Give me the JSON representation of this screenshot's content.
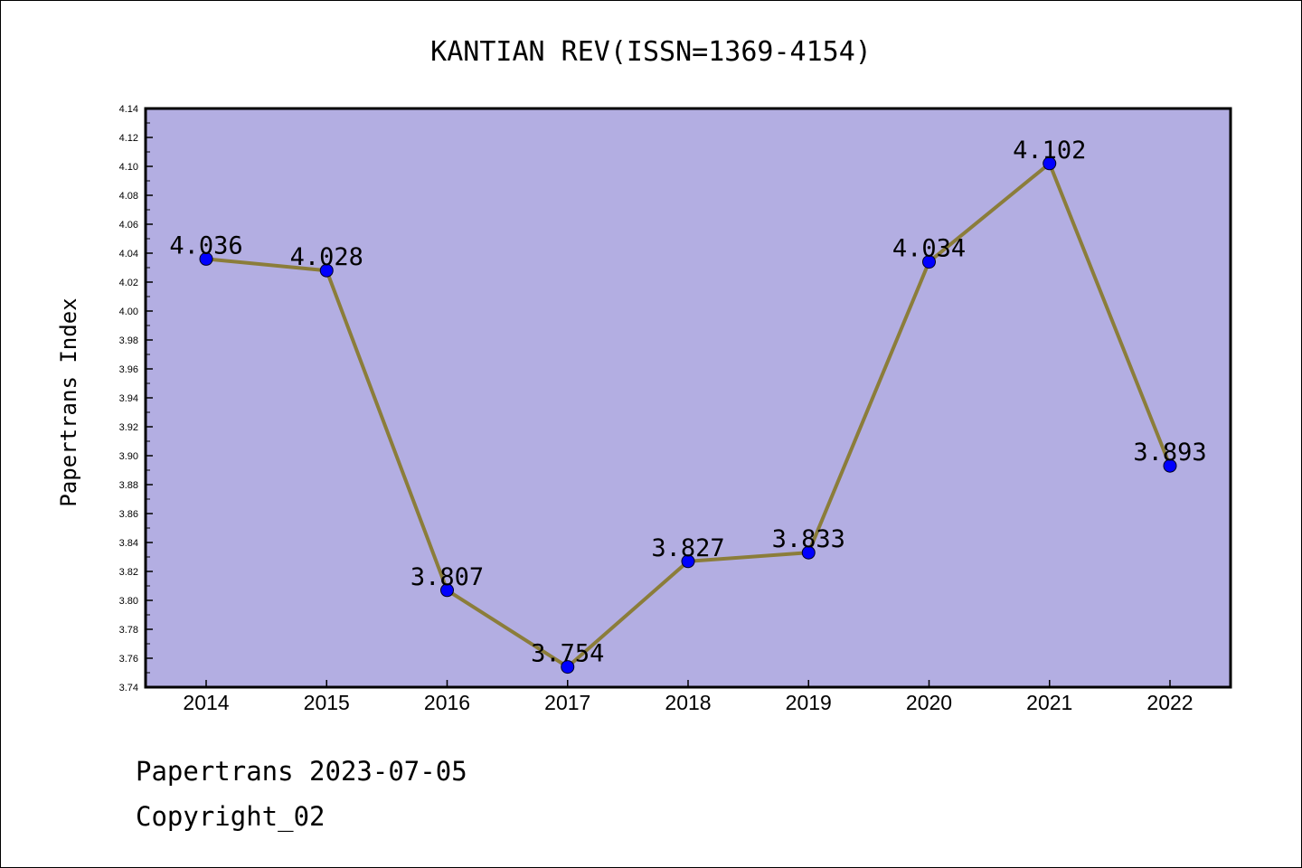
{
  "chart_data": {
    "type": "line",
    "title": "KANTIAN REV(ISSN=1369-4154)",
    "ylabel": "Papertrans Index",
    "xlabel": "",
    "categories": [
      "2014",
      "2015",
      "2016",
      "2017",
      "2018",
      "2019",
      "2020",
      "2021",
      "2022"
    ],
    "values": [
      4.036,
      4.028,
      3.807,
      3.754,
      3.827,
      3.833,
      4.034,
      4.102,
      3.893
    ],
    "data_labels": [
      "4.036",
      "4.028",
      "3.807",
      "3.754",
      "3.827",
      "3.833",
      "4.034",
      "4.102",
      "3.893"
    ],
    "ylim": [
      3.74,
      4.14
    ],
    "yticks": [
      "3.74",
      "3.76",
      "3.78",
      "3.80",
      "3.82",
      "3.84",
      "3.86",
      "3.88",
      "3.90",
      "3.92",
      "3.94",
      "3.96",
      "3.98",
      "4.00",
      "4.02",
      "4.04",
      "4.06",
      "4.08",
      "4.10",
      "4.12",
      "4.14"
    ],
    "grid": false,
    "colors": {
      "plot_background": "#b3aee2",
      "line": "#8b7d3a",
      "marker": "#0000ff"
    }
  },
  "footer": {
    "line1": "Papertrans 2023-07-05",
    "line2": "Copyright_02"
  }
}
